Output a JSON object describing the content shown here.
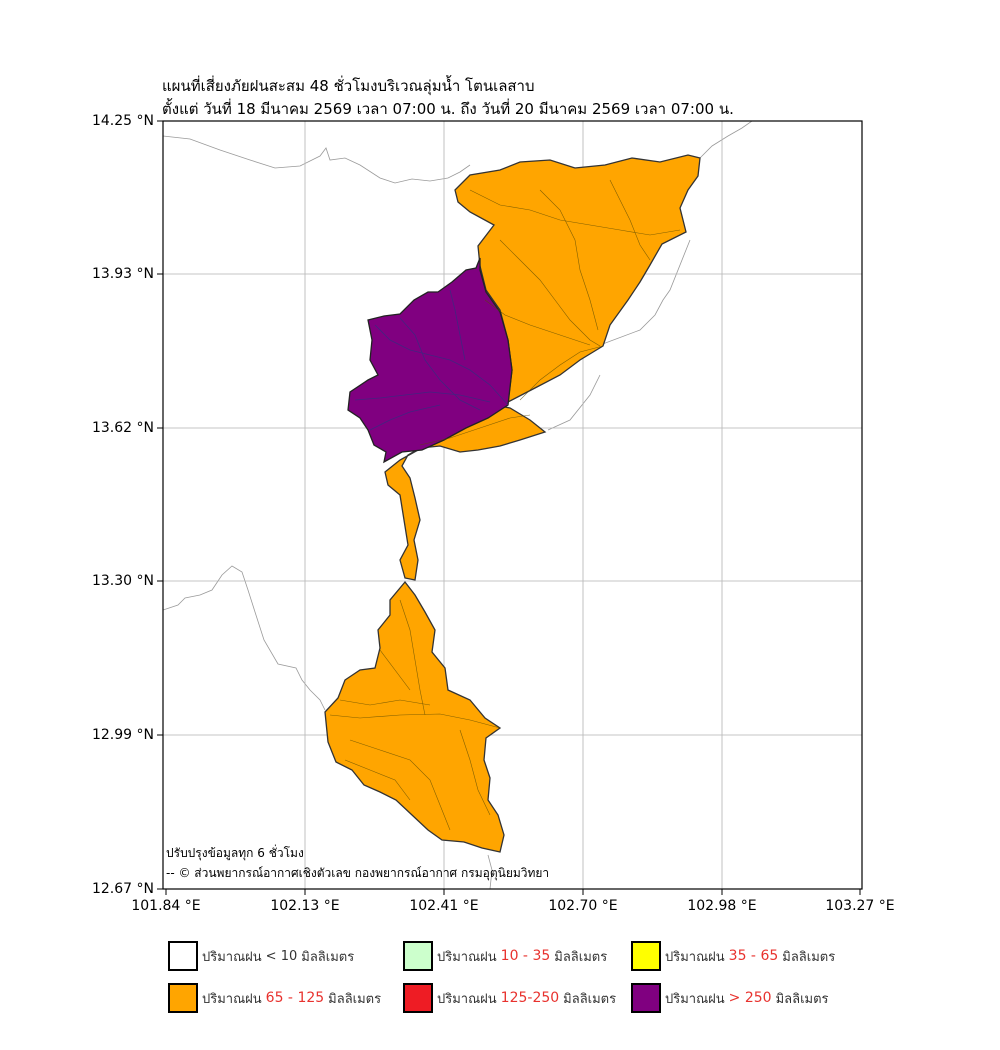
{
  "title": {
    "line1": "แผนที่เสี่ยงภัยฝนสะสม 48 ชั่วโมงบริเวณลุ่มน้ำ โตนเลสาบ",
    "line2": "ตั้งแต่ วันที่ 18 มีนาคม 2569 เวลา 07:00 น. ถึง วันที่ 20 มีนาคม 2569 เวลา 07:00 น."
  },
  "axes": {
    "y_ticks": [
      "14.25 °N",
      "13.93 °N",
      "13.62 °N",
      "13.30 °N",
      "12.99 °N",
      "12.67 °N"
    ],
    "x_ticks": [
      "101.84 °E",
      "102.13 °E",
      "102.41 °E",
      "102.70 °E",
      "102.98 °E",
      "103.27 °E"
    ]
  },
  "notes": {
    "update": "ปรับปรุงข้อมูลทุก 6 ชั่วโมง",
    "credit": "-- © ส่วนพยากรณ์อากาศเชิงตัวเลข กองพยากรณ์อากาศ กรมอุตุนิยมวิทยา"
  },
  "legend": [
    {
      "prefix": "ปริมาณฝน",
      "range": "< 10",
      "unit": "มิลลิเมตร",
      "color": "#ffffff"
    },
    {
      "prefix": "ปริมาณฝน",
      "range": "10 - 35",
      "unit": "มิลลิเมตร",
      "color": "#ccffcc"
    },
    {
      "prefix": "ปริมาณฝน",
      "range": "35 - 65",
      "unit": "มิลลิเมตร",
      "color": "#ffff00"
    },
    {
      "prefix": "ปริมาณฝน",
      "range": "65 - 125",
      "unit": "มิลลิเมตร",
      "color": "#ffa500"
    },
    {
      "prefix": "ปริมาณฝน",
      "range": "125-250",
      "unit": "มิลลิเมตร",
      "color": "#ee1c24"
    },
    {
      "prefix": "ปริมาณฝน",
      "range": "> 250",
      "unit": "มิลลิเมตร",
      "color": "#800080"
    }
  ],
  "map_colors": {
    "orange": "#ffa500",
    "purple": "#800080",
    "border_gray": "#9a9a9a"
  }
}
